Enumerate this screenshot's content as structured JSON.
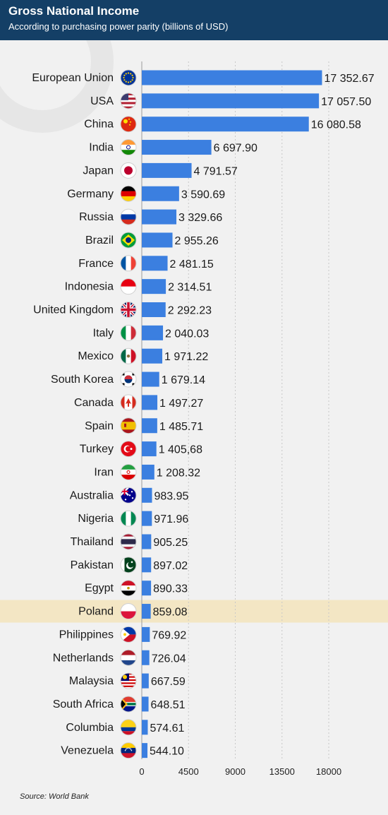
{
  "header": {
    "title": "Gross National Income",
    "subtitle": "According to purchasing power parity (billions of USD)"
  },
  "footer": {
    "source": "Source: World Bank"
  },
  "colors": {
    "header_bg": "#143f66",
    "bar": "#3b7fe0",
    "highlight": "#f3e6c4",
    "background": "#f1f1f1",
    "text": "#1a1a1a"
  },
  "chart_data": {
    "type": "bar",
    "orientation": "horizontal",
    "title": "Gross National Income",
    "subtitle": "According to purchasing power parity (billions of USD)",
    "xlim": [
      0,
      18000
    ],
    "x_ticks": [
      0,
      4500,
      9000,
      13500,
      18000
    ],
    "x_tick_labels": [
      "0",
      "4500",
      "9000",
      "13500",
      "18000"
    ],
    "grid": true,
    "highlight": "Poland",
    "categories": [
      "European Union",
      "USA",
      "China",
      "India",
      "Japan",
      "Germany",
      "Russia",
      "Brazil",
      "France",
      "Indonesia",
      "United Kingdom",
      "Italy",
      "Mexico",
      "South Korea",
      "Canada",
      "Spain",
      "Turkey",
      "Iran",
      "Australia",
      "Nigeria",
      "Thailand",
      "Pakistan",
      "Egypt",
      "Poland",
      "Philippines",
      "Netherlands",
      "Malaysia",
      "South Africa",
      "Columbia",
      "Venezuela"
    ],
    "values": [
      17352.67,
      17057.5,
      16080.58,
      6697.9,
      4791.57,
      3590.69,
      3329.66,
      2955.26,
      2481.15,
      2314.51,
      2292.23,
      2040.03,
      1971.22,
      1679.14,
      1497.27,
      1485.71,
      1405.68,
      1208.32,
      983.95,
      971.96,
      905.25,
      897.02,
      890.33,
      859.08,
      769.92,
      726.04,
      667.59,
      648.51,
      574.61,
      544.1
    ],
    "value_labels": [
      "17 352.67",
      "17 057.50",
      "16 080.58",
      "6 697.90",
      "4 791.57",
      "3 590.69",
      "3 329.66",
      "2 955.26",
      "2 481.15",
      "2 314.51",
      "2 292.23",
      "2 040.03",
      "1 971.22",
      "1 679.14",
      "1 497.27",
      "1 485.71",
      "1 405,68",
      "1 208.32",
      "983.95",
      "971.96",
      "905.25",
      "897.02",
      "890.33",
      "859.08",
      "769.92",
      "726.04",
      "667.59",
      "648.51",
      "574.61",
      "544.10"
    ],
    "flag_icons": [
      "eu-flag-icon",
      "usa-flag-icon",
      "china-flag-icon",
      "india-flag-icon",
      "japan-flag-icon",
      "germany-flag-icon",
      "russia-flag-icon",
      "brazil-flag-icon",
      "france-flag-icon",
      "indonesia-flag-icon",
      "uk-flag-icon",
      "italy-flag-icon",
      "mexico-flag-icon",
      "south-korea-flag-icon",
      "canada-flag-icon",
      "spain-flag-icon",
      "turkey-flag-icon",
      "iran-flag-icon",
      "australia-flag-icon",
      "nigeria-flag-icon",
      "thailand-flag-icon",
      "pakistan-flag-icon",
      "egypt-flag-icon",
      "poland-flag-icon",
      "philippines-flag-icon",
      "netherlands-flag-icon",
      "malaysia-flag-icon",
      "south-africa-flag-icon",
      "colombia-flag-icon",
      "venezuela-flag-icon"
    ]
  }
}
